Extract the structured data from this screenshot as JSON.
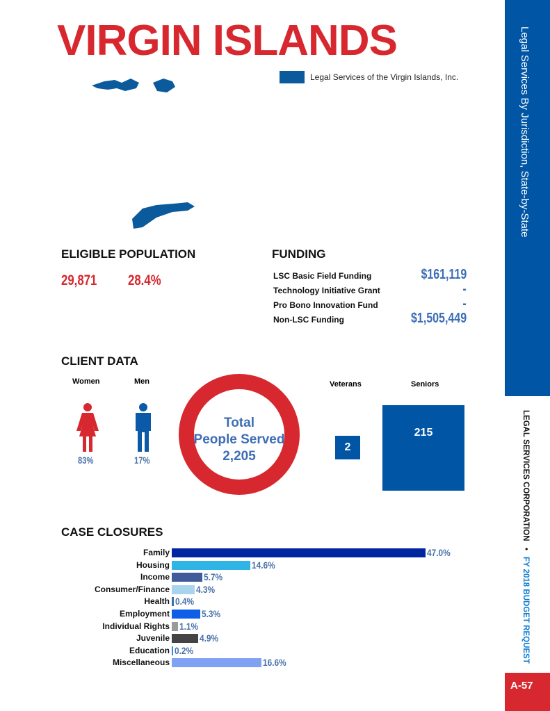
{
  "title": "VIRGIN ISLANDS",
  "legend": {
    "label": "Legal Services of the Virgin Islands, Inc.",
    "color": "#0a5a9c"
  },
  "sidebar": {
    "top_text": "Legal Services By Jurisdiction, State-by-State",
    "org": "LEGAL SERVICES CORPORATION",
    "separator": "•",
    "request": "FY 2018 BUDGET REQUEST",
    "page": "A-57"
  },
  "eligible": {
    "heading": "ELIGIBLE POPULATION",
    "count": "29,871",
    "percent": "28.4%"
  },
  "funding": {
    "heading": "FUNDING",
    "rows": [
      {
        "label": "LSC Basic Field Funding",
        "value": "$161,119"
      },
      {
        "label": "Technology Initiative Grant",
        "value": "-"
      },
      {
        "label": "Pro Bono Innovation Fund",
        "value": "-"
      },
      {
        "label": "Non-LSC Funding",
        "value": "$1,505,449"
      }
    ]
  },
  "client": {
    "heading": "CLIENT DATA",
    "women_label": "Women",
    "women_pct": "83%",
    "men_label": "Men",
    "men_pct": "17%",
    "total_line1": "Total",
    "total_line2": "People Served",
    "total_value": "2,205",
    "veterans_label": "Veterans",
    "veterans_value": "2",
    "seniors_label": "Seniors",
    "seniors_value": "215"
  },
  "chart_data": {
    "type": "bar",
    "title": "CASE CLOSURES",
    "orientation": "horizontal",
    "categories": [
      "Family",
      "Housing",
      "Income",
      "Consumer/Finance",
      "Health",
      "Employment",
      "Individual Rights",
      "Juvenile",
      "Education",
      "Miscellaneous"
    ],
    "values": [
      47.0,
      14.6,
      5.7,
      4.3,
      0.4,
      5.3,
      1.1,
      4.9,
      0.2,
      16.6
    ],
    "labels": [
      "47.0%",
      "14.6%",
      "5.7%",
      "4.3%",
      "0.4%",
      "5.3%",
      "1.1%",
      "4.9%",
      "0.2%",
      "16.6%"
    ],
    "colors": [
      "#0025a0",
      "#2eb5e6",
      "#3f5b9a",
      "#a9d4ee",
      "#3a6fb0",
      "#0f5ee8",
      "#9a9a9a",
      "#444444",
      "#2a8fd6",
      "#7fa2f3"
    ]
  }
}
